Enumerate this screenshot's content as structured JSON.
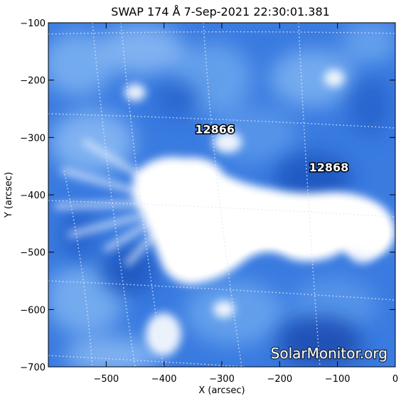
{
  "title": "SWAP 174 Å  7-Sep-2021 22:30:01.381",
  "x_axis": {
    "label": "X (arcsec)",
    "range": [
      -600,
      0
    ],
    "ticks": [
      {
        "value": -500,
        "label": "−500"
      },
      {
        "value": -400,
        "label": "−400"
      },
      {
        "value": -300,
        "label": "−300"
      },
      {
        "value": -200,
        "label": "−200"
      },
      {
        "value": -100,
        "label": "−100"
      },
      {
        "value": 0,
        "label": "0"
      }
    ]
  },
  "y_axis": {
    "label": "Y (arcsec)",
    "range": [
      -700,
      -100
    ],
    "ticks": [
      {
        "value": -100,
        "label": "−100"
      },
      {
        "value": -200,
        "label": "−200"
      },
      {
        "value": -300,
        "label": "−300"
      },
      {
        "value": -400,
        "label": "−400"
      },
      {
        "value": -500,
        "label": "−500"
      },
      {
        "value": -600,
        "label": "−600"
      },
      {
        "value": -700,
        "label": "−700"
      }
    ]
  },
  "active_regions": [
    {
      "label": "12866",
      "x": -312,
      "y": -293
    },
    {
      "label": "12868",
      "x": -115,
      "y": -359
    }
  ],
  "watermark": "SolarMonitor.org",
  "colors": {
    "background": "#2f6fd6",
    "mid": "#6aa6ee",
    "bright": "#ffffff",
    "dark": "#184fb4",
    "grid": "#dbe7fb"
  }
}
